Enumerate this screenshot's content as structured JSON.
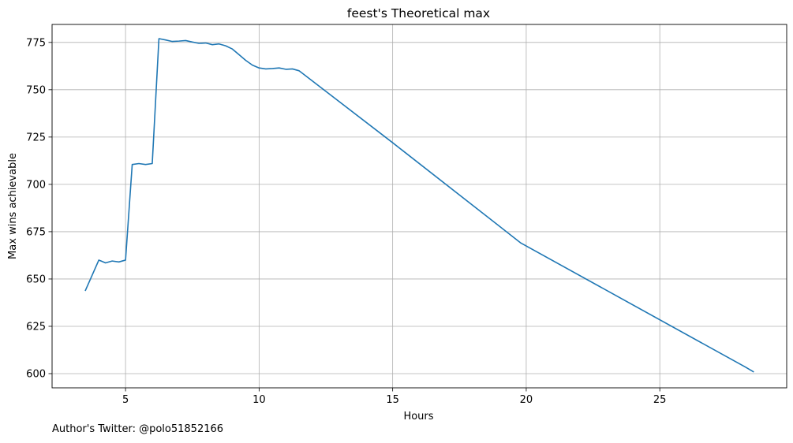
{
  "chart_data": {
    "type": "line",
    "title": "feest's Theoretical max",
    "xlabel": "Hours",
    "ylabel": "Max wins achievable",
    "xlim": [
      2.25,
      29.75
    ],
    "ylim": [
      592.5,
      784.5
    ],
    "xticks": [
      5,
      10,
      15,
      20,
      25
    ],
    "yticks": [
      600,
      625,
      650,
      675,
      700,
      725,
      750,
      775
    ],
    "grid": true,
    "series": [
      {
        "color": "#1f77b4",
        "x": [
          3.5,
          4.0,
          4.25,
          4.5,
          4.75,
          5.0,
          5.25,
          5.5,
          5.75,
          6.0,
          6.25,
          6.5,
          6.75,
          7.0,
          7.25,
          7.5,
          7.75,
          8.0,
          8.25,
          8.5,
          8.75,
          9.0,
          9.25,
          9.5,
          9.75,
          10.0,
          10.25,
          10.5,
          10.75,
          11.0,
          11.25,
          11.5,
          15.0,
          19.8,
          28.2,
          28.5
        ],
        "y": [
          644,
          660,
          658.5,
          659.5,
          659,
          660,
          710.5,
          711,
          710.5,
          711,
          777,
          776.3,
          775.5,
          775.7,
          776,
          775.2,
          774.5,
          774.7,
          773.8,
          774.2,
          773.2,
          771.5,
          768.5,
          765.5,
          763,
          761.5,
          761,
          761.2,
          761.5,
          760.8,
          761,
          760,
          722,
          669,
          603.5,
          601
        ]
      }
    ]
  },
  "footer": {
    "author_text": "Author's Twitter: @polo51852166"
  }
}
